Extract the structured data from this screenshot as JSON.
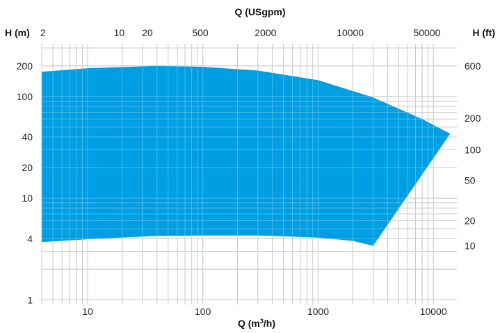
{
  "chart_data": {
    "type": "area",
    "title": "",
    "xlabel_bottom": "Q (m³/h)",
    "xlabel_top": "Q (USgpm)",
    "ylabel_left": "H (m)",
    "ylabel_right": "H (ft)",
    "x_scale": "log",
    "y_scale": "log",
    "xlim": [
      4,
      16000
    ],
    "ylim": [
      0.9,
      330
    ],
    "grid": true,
    "fill_color": "#009fe3",
    "grid_color": "#b5b5b5",
    "x_ticks_bottom": [
      {
        "value": 10,
        "label": "10"
      },
      {
        "value": 100,
        "label": "100"
      },
      {
        "value": 1000,
        "label": "1000"
      },
      {
        "value": 10000,
        "label": "10000"
      }
    ],
    "x_ticks_top": [
      {
        "value": 4.1,
        "label": "2"
      },
      {
        "value": 18.8,
        "label": "10"
      },
      {
        "value": 33,
        "label": "20"
      },
      {
        "value": 95,
        "label": "500"
      },
      {
        "value": 350,
        "label": "2000"
      },
      {
        "value": 1900,
        "label": "10000"
      },
      {
        "value": 8800,
        "label": "50000"
      }
    ],
    "y_ticks_left": [
      {
        "value": 1,
        "label": "1"
      },
      {
        "value": 4,
        "label": "4"
      },
      {
        "value": 10,
        "label": "10"
      },
      {
        "value": 20,
        "label": "20"
      },
      {
        "value": 40,
        "label": "40"
      },
      {
        "value": 100,
        "label": "100"
      },
      {
        "value": 200,
        "label": "200"
      }
    ],
    "y_ticks_right": [
      {
        "value": 3.4,
        "label": "10"
      },
      {
        "value": 6.0,
        "label": "20"
      },
      {
        "value": 15.0,
        "label": "50"
      },
      {
        "value": 30.0,
        "label": "100"
      },
      {
        "value": 61.0,
        "label": "200"
      },
      {
        "value": 200,
        "label": "600"
      }
    ],
    "envelope": {
      "upper": [
        [
          4,
          175
        ],
        [
          10,
          190
        ],
        [
          40,
          200
        ],
        [
          100,
          196
        ],
        [
          300,
          180
        ],
        [
          1000,
          145
        ],
        [
          3000,
          98
        ],
        [
          8000,
          60
        ],
        [
          14000,
          43
        ]
      ],
      "lower": [
        [
          4,
          3.7
        ],
        [
          10,
          3.95
        ],
        [
          40,
          4.25
        ],
        [
          100,
          4.3
        ],
        [
          300,
          4.3
        ],
        [
          1000,
          4.1
        ],
        [
          2000,
          3.8
        ],
        [
          3000,
          3.4
        ]
      ],
      "lower_right_corner": [
        3000,
        3.4
      ],
      "upper_right_corner": [
        14000,
        43
      ]
    }
  }
}
